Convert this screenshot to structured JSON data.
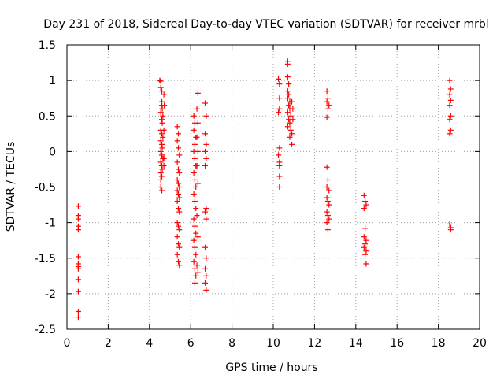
{
  "chart_data": {
    "type": "scatter",
    "title": "Day 231 of 2018, Sidereal Day-to-day VTEC variation (SDTVAR) for receiver mrbl",
    "xlabel": "GPS time / hours",
    "ylabel": "SDTVAR / TECUs",
    "xlim": [
      0,
      20
    ],
    "ylim": [
      -2.5,
      1.5
    ],
    "xticks": [
      0,
      2,
      4,
      6,
      8,
      10,
      12,
      14,
      16,
      18,
      20
    ],
    "yticks": [
      -2.5,
      -2,
      -1.5,
      -1,
      -0.5,
      0,
      0.5,
      1,
      1.5
    ],
    "xtick_labels": [
      "0",
      "2",
      "4",
      "6",
      "8",
      "10",
      "12",
      "14",
      "16",
      "18",
      "20"
    ],
    "ytick_labels": [
      "-2.5",
      "-2",
      "-1.5",
      "-1",
      "-0.5",
      "0",
      "0.5",
      "1",
      "1.5"
    ],
    "grid": true,
    "marker": "plus",
    "color": "#ff0000",
    "series": [
      {
        "name": "SDTVAR",
        "points": [
          [
            0.55,
            -0.77
          ],
          [
            0.55,
            -0.9
          ],
          [
            0.55,
            -0.95
          ],
          [
            0.55,
            -1.05
          ],
          [
            0.55,
            -1.1
          ],
          [
            0.55,
            -1.48
          ],
          [
            0.55,
            -1.58
          ],
          [
            0.55,
            -1.62
          ],
          [
            0.55,
            -1.65
          ],
          [
            0.55,
            -1.8
          ],
          [
            0.55,
            -1.97
          ],
          [
            0.55,
            -2.25
          ],
          [
            0.55,
            -2.33
          ],
          [
            4.5,
            1.0
          ],
          [
            4.55,
            0.99
          ],
          [
            4.55,
            0.9
          ],
          [
            4.6,
            0.85
          ],
          [
            4.7,
            0.8
          ],
          [
            4.6,
            0.7
          ],
          [
            4.6,
            0.65
          ],
          [
            4.62,
            0.6
          ],
          [
            4.55,
            0.55
          ],
          [
            4.65,
            0.5
          ],
          [
            4.6,
            0.45
          ],
          [
            4.62,
            0.4
          ],
          [
            4.55,
            0.3
          ],
          [
            4.6,
            0.25
          ],
          [
            4.65,
            0.2
          ],
          [
            4.55,
            0.15
          ],
          [
            4.6,
            0.1
          ],
          [
            4.62,
            0.05
          ],
          [
            4.55,
            0.0
          ],
          [
            4.6,
            -0.05
          ],
          [
            4.65,
            -0.1
          ],
          [
            4.55,
            -0.15
          ],
          [
            4.6,
            -0.2
          ],
          [
            4.62,
            -0.25
          ],
          [
            4.55,
            -0.3
          ],
          [
            4.6,
            -0.35
          ],
          [
            4.55,
            -0.4
          ],
          [
            4.55,
            -0.5
          ],
          [
            4.6,
            -0.55
          ],
          [
            4.7,
            -0.2
          ],
          [
            4.7,
            0.3
          ],
          [
            4.72,
            0.65
          ],
          [
            4.7,
            -0.1
          ],
          [
            5.35,
            0.35
          ],
          [
            5.4,
            0.25
          ],
          [
            5.35,
            0.15
          ],
          [
            5.4,
            0.05
          ],
          [
            5.45,
            -0.05
          ],
          [
            5.35,
            -0.15
          ],
          [
            5.4,
            -0.25
          ],
          [
            5.45,
            -0.3
          ],
          [
            5.35,
            -0.4
          ],
          [
            5.4,
            -0.45
          ],
          [
            5.45,
            -0.5
          ],
          [
            5.35,
            -0.55
          ],
          [
            5.4,
            -0.6
          ],
          [
            5.45,
            -0.65
          ],
          [
            5.35,
            -0.7
          ],
          [
            5.4,
            -0.8
          ],
          [
            5.45,
            -0.85
          ],
          [
            5.35,
            -1.0
          ],
          [
            5.4,
            -1.05
          ],
          [
            5.45,
            -1.1
          ],
          [
            5.35,
            -1.2
          ],
          [
            5.4,
            -1.3
          ],
          [
            5.45,
            -1.35
          ],
          [
            5.35,
            -1.45
          ],
          [
            5.4,
            -1.55
          ],
          [
            5.45,
            -1.6
          ],
          [
            6.15,
            0.5
          ],
          [
            6.2,
            0.4
          ],
          [
            6.15,
            0.3
          ],
          [
            6.25,
            0.2
          ],
          [
            6.2,
            0.1
          ],
          [
            6.15,
            0.0
          ],
          [
            6.2,
            -0.1
          ],
          [
            6.25,
            -0.2
          ],
          [
            6.15,
            -0.3
          ],
          [
            6.2,
            -0.4
          ],
          [
            6.25,
            -0.5
          ],
          [
            6.15,
            -0.6
          ],
          [
            6.2,
            -0.7
          ],
          [
            6.25,
            -0.8
          ],
          [
            6.15,
            -0.95
          ],
          [
            6.2,
            -1.05
          ],
          [
            6.25,
            -1.15
          ],
          [
            6.15,
            -1.25
          ],
          [
            6.2,
            -1.35
          ],
          [
            6.25,
            -1.45
          ],
          [
            6.15,
            -1.55
          ],
          [
            6.2,
            -1.65
          ],
          [
            6.25,
            -1.75
          ],
          [
            6.2,
            -1.85
          ],
          [
            6.35,
            0.82
          ],
          [
            6.3,
            0.6
          ],
          [
            6.35,
            0.4
          ],
          [
            6.3,
            0.2
          ],
          [
            6.35,
            0.0
          ],
          [
            6.3,
            -0.2
          ],
          [
            6.35,
            -0.45
          ],
          [
            6.3,
            -0.9
          ],
          [
            6.35,
            -1.2
          ],
          [
            6.3,
            -1.6
          ],
          [
            6.35,
            -1.7
          ],
          [
            6.7,
            0.68
          ],
          [
            6.75,
            0.5
          ],
          [
            6.7,
            0.25
          ],
          [
            6.75,
            0.1
          ],
          [
            6.7,
            0.0
          ],
          [
            6.75,
            -0.1
          ],
          [
            6.7,
            -0.2
          ],
          [
            6.75,
            -0.8
          ],
          [
            6.7,
            -0.85
          ],
          [
            6.75,
            -0.95
          ],
          [
            6.7,
            -1.35
          ],
          [
            6.75,
            -1.5
          ],
          [
            6.7,
            -1.65
          ],
          [
            6.75,
            -1.75
          ],
          [
            6.7,
            -1.85
          ],
          [
            6.75,
            -1.95
          ],
          [
            10.25,
            1.02
          ],
          [
            10.3,
            0.95
          ],
          [
            10.3,
            0.75
          ],
          [
            10.3,
            0.6
          ],
          [
            10.25,
            0.55
          ],
          [
            10.3,
            0.05
          ],
          [
            10.25,
            -0.05
          ],
          [
            10.3,
            -0.15
          ],
          [
            10.3,
            -0.2
          ],
          [
            10.3,
            -0.35
          ],
          [
            10.3,
            -0.5
          ],
          [
            10.7,
            1.27
          ],
          [
            10.7,
            1.23
          ],
          [
            10.7,
            1.05
          ],
          [
            10.75,
            0.95
          ],
          [
            10.7,
            0.85
          ],
          [
            10.75,
            0.8
          ],
          [
            10.7,
            0.75
          ],
          [
            10.8,
            0.7
          ],
          [
            10.75,
            0.65
          ],
          [
            10.8,
            0.6
          ],
          [
            10.7,
            0.55
          ],
          [
            10.85,
            0.5
          ],
          [
            10.75,
            0.45
          ],
          [
            10.8,
            0.4
          ],
          [
            10.7,
            0.35
          ],
          [
            10.85,
            0.3
          ],
          [
            10.9,
            0.25
          ],
          [
            10.8,
            0.2
          ],
          [
            10.9,
            0.1
          ],
          [
            10.95,
            0.45
          ],
          [
            10.95,
            0.6
          ],
          [
            10.9,
            0.7
          ],
          [
            12.6,
            0.85
          ],
          [
            12.65,
            0.75
          ],
          [
            12.6,
            0.7
          ],
          [
            12.7,
            0.65
          ],
          [
            12.65,
            0.6
          ],
          [
            12.6,
            0.48
          ],
          [
            12.6,
            -0.22
          ],
          [
            12.65,
            -0.4
          ],
          [
            12.6,
            -0.5
          ],
          [
            12.7,
            -0.55
          ],
          [
            12.6,
            -0.65
          ],
          [
            12.65,
            -0.7
          ],
          [
            12.7,
            -0.75
          ],
          [
            12.6,
            -0.85
          ],
          [
            12.65,
            -0.9
          ],
          [
            12.7,
            -0.95
          ],
          [
            12.6,
            -1.0
          ],
          [
            12.65,
            -1.1
          ],
          [
            14.4,
            -0.62
          ],
          [
            14.45,
            -0.7
          ],
          [
            14.5,
            -0.75
          ],
          [
            14.4,
            -0.8
          ],
          [
            14.45,
            -1.08
          ],
          [
            14.4,
            -1.2
          ],
          [
            14.5,
            -1.25
          ],
          [
            14.45,
            -1.3
          ],
          [
            14.4,
            -1.35
          ],
          [
            14.5,
            -1.4
          ],
          [
            14.45,
            -1.45
          ],
          [
            14.5,
            -1.58
          ],
          [
            18.55,
            1.0
          ],
          [
            18.6,
            0.88
          ],
          [
            18.55,
            0.8
          ],
          [
            18.6,
            0.72
          ],
          [
            18.55,
            0.65
          ],
          [
            18.6,
            0.5
          ],
          [
            18.55,
            0.45
          ],
          [
            18.6,
            0.3
          ],
          [
            18.55,
            0.25
          ],
          [
            18.55,
            -1.02
          ],
          [
            18.6,
            -1.07
          ],
          [
            18.6,
            -1.1
          ]
        ]
      }
    ]
  }
}
